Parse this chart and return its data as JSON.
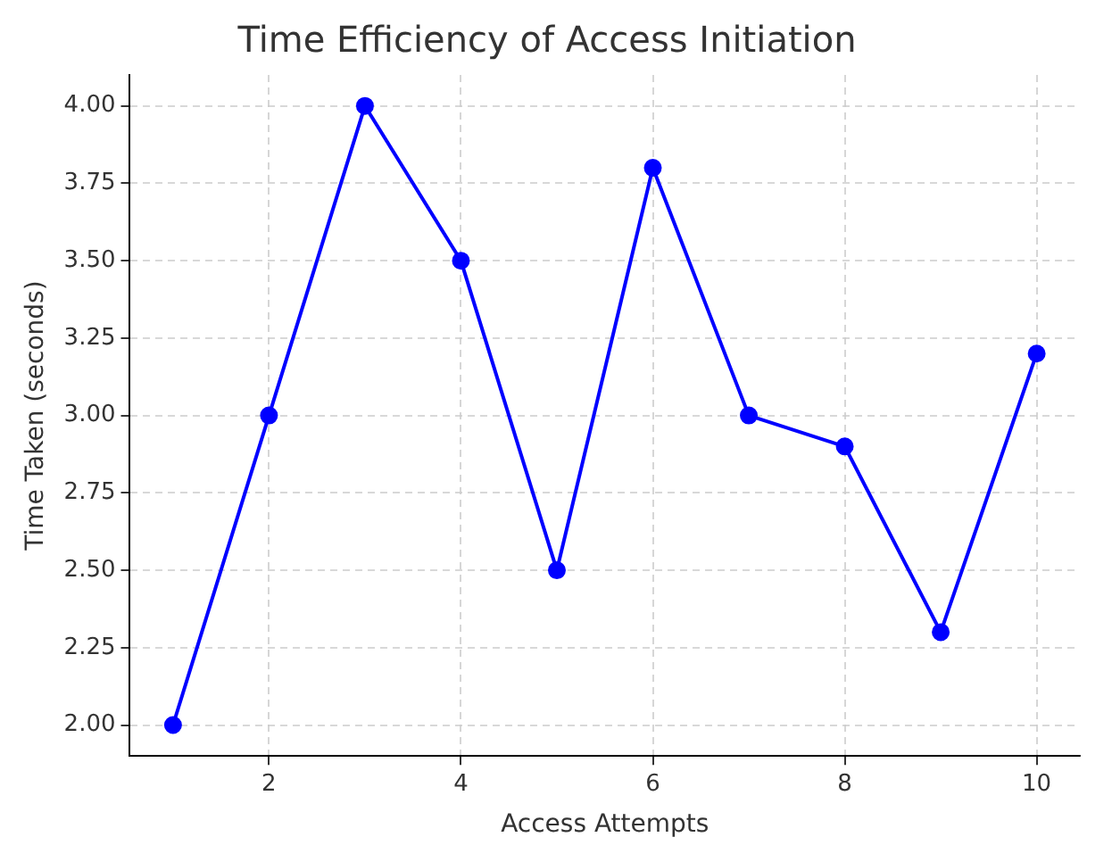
{
  "chart_data": {
    "type": "line",
    "title": "Time Efficiency of Access Initiation",
    "xlabel": "Access Attempts",
    "ylabel": "Time Taken (seconds)",
    "x": [
      1,
      2,
      3,
      4,
      5,
      6,
      7,
      8,
      9,
      10
    ],
    "series": [
      {
        "color": "#0000ff",
        "values": [
          2.0,
          3.0,
          4.0,
          3.5,
          2.5,
          3.8,
          3.0,
          2.9,
          2.3,
          3.2
        ]
      }
    ],
    "xlim": [
      0.55,
      10.45
    ],
    "xticks": [
      2,
      4,
      6,
      8,
      10
    ],
    "ylim": [
      1.9,
      4.1
    ],
    "yticks": [
      {
        "value": 2,
        "label": "2.00"
      },
      2.25,
      {
        "value": 2.5,
        "label": "2.50"
      },
      2.75,
      {
        "value": 3,
        "label": "3.00"
      },
      3.25,
      {
        "value": 3.5,
        "label": "3.50"
      },
      3.75,
      {
        "value": 4,
        "label": "4.00"
      }
    ],
    "grid": true,
    "legend": false,
    "marker": "circle",
    "line_style": "solid"
  }
}
